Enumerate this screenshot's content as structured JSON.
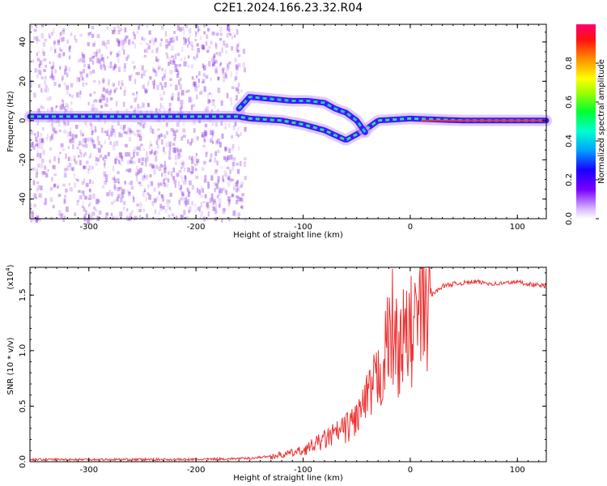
{
  "title": "C2E1.2024.166.23.32.R04",
  "colors": {
    "snr_line": "#ee3333",
    "scatter": "#8a2be2"
  },
  "chart_data": [
    {
      "type": "heatmap",
      "xlabel": "Height of straight line (km)",
      "ylabel": "Frequency (Hz)",
      "xlim": [
        -355,
        127
      ],
      "ylim": [
        -50,
        49
      ],
      "xticks": [
        -300,
        -200,
        -100,
        0,
        100
      ],
      "yticks": [
        -40,
        -20,
        0,
        20,
        40
      ],
      "colorbar": {
        "label": "Normalized spectral amplitude",
        "range": [
          0,
          1
        ],
        "ticks": [
          "0.0",
          "0.2",
          "0.4",
          "0.6",
          "0.8"
        ],
        "colormap": "rainbow"
      },
      "series": [
        {
          "x": [
            -355,
            -300,
            -250,
            -200,
            -160,
            -150,
            -120,
            -100,
            -80,
            -60,
            -40,
            -30,
            0,
            50,
            100,
            127
          ],
          "y": [
            2,
            2,
            2,
            2,
            2,
            1,
            0,
            -2,
            -5,
            -10,
            -4,
            0,
            1,
            0,
            0,
            0
          ]
        },
        {
          "x": [
            -160,
            -150,
            -130,
            -110,
            -95,
            -80,
            -70,
            -60,
            -50,
            -42
          ],
          "y": [
            6,
            12,
            11,
            10,
            10,
            9,
            6,
            4,
            0,
            -6
          ]
        }
      ]
    },
    {
      "type": "line",
      "xlabel": "Height of straight line (km)",
      "ylabel": "SNR (10 * v/v)",
      "multiplier": "(x10",
      "multiplier_exp": "4",
      "multiplier_close": ")",
      "xlim": [
        -355,
        127
      ],
      "ylim": [
        0,
        1.75
      ],
      "xticks": [
        -300,
        -200,
        -100,
        0,
        100
      ],
      "yticks": [
        "0.0",
        "0.5",
        "1.0",
        "1.5"
      ],
      "series": [
        {
          "x": [
            -355,
            -300,
            -250,
            -200,
            -150,
            -120,
            -110,
            -100,
            -90,
            -80,
            -70,
            -60,
            -50,
            -40,
            -30,
            -25,
            -20,
            -17,
            -15,
            -10,
            -5,
            0,
            10,
            20,
            30,
            40,
            60,
            80,
            100,
            110,
            127
          ],
          "y": [
            0.02,
            0.02,
            0.02,
            0.02,
            0.03,
            0.06,
            0.08,
            0.1,
            0.15,
            0.2,
            0.25,
            0.3,
            0.4,
            0.55,
            0.75,
            0.9,
            1.1,
            1.25,
            1.05,
            1.05,
            1.1,
            1.15,
            1.35,
            1.5,
            1.58,
            1.6,
            1.62,
            1.6,
            1.62,
            1.6,
            1.58
          ]
        }
      ]
    }
  ]
}
